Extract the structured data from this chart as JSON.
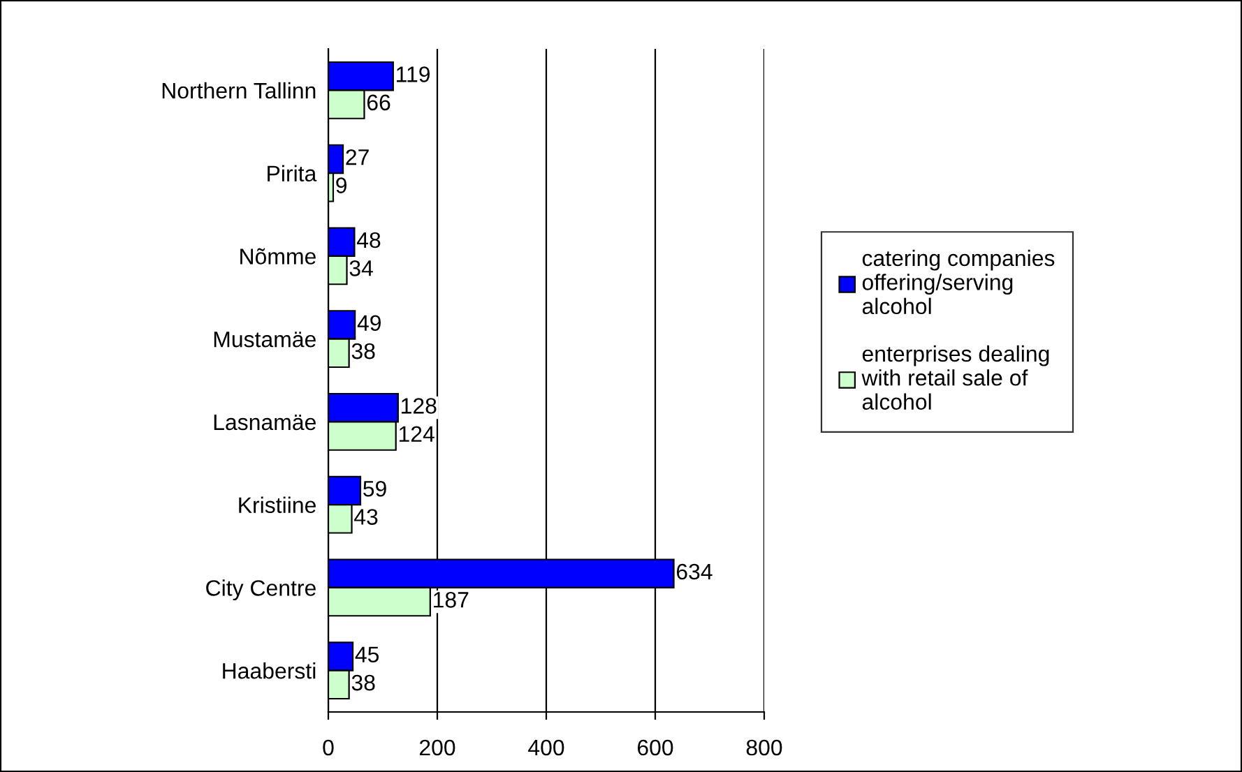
{
  "chart_data": {
    "type": "bar",
    "orientation": "horizontal",
    "categories": [
      "Northern Tallinn",
      "Pirita",
      "Nõmme",
      "Mustamäe",
      "Lasnamäe",
      "Kristiine",
      "City Centre",
      "Haabersti"
    ],
    "series": [
      {
        "name": "catering companies offering/serving alcohol",
        "color": "#0000ff",
        "values": [
          119,
          27,
          48,
          49,
          128,
          59,
          634,
          45
        ]
      },
      {
        "name": "enterprises dealing with retail sale of alcohol",
        "color": "#ccffcc",
        "values": [
          66,
          9,
          34,
          38,
          124,
          43,
          187,
          38
        ]
      }
    ],
    "xlim": [
      0,
      800
    ],
    "xticks": [
      0,
      200,
      400,
      600,
      800
    ],
    "grid": "x",
    "legend": "right",
    "data_labels": true
  }
}
